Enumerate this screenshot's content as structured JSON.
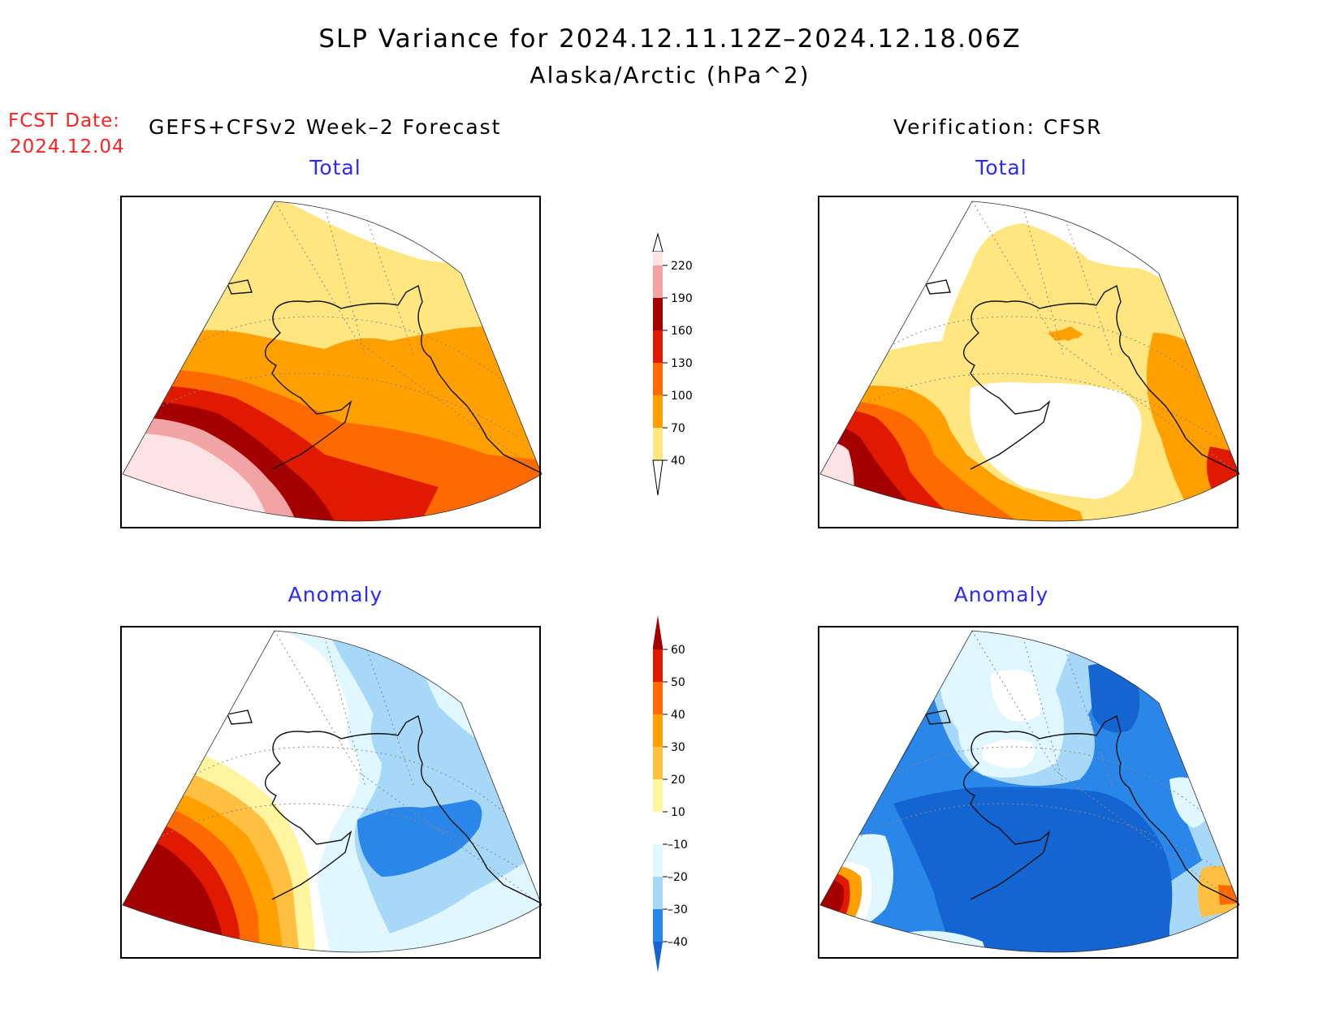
{
  "title": "SLP Variance for 2024.12.11.12Z–2024.12.18.06Z",
  "subtitle": "Alaska/Arctic (hPa^2)",
  "forecast_date": {
    "label": "FCST Date:",
    "value": "2024.12.04"
  },
  "left_header": "GEFS+CFSv2 Week–2 Forecast",
  "right_header": "Verification: CFSR",
  "panels": {
    "forecast_total_title": "Total",
    "verification_total_title": "Total",
    "forecast_anomaly_title": "Anomaly",
    "verification_anomaly_title": "Anomaly"
  },
  "colorbars": {
    "total": {
      "labels": [
        "220",
        "190",
        "160",
        "130",
        "100",
        "70",
        "40"
      ],
      "colors": {
        "c220": "#fde3e3",
        "c190": "#f2a4a4",
        "c160": "#a50000",
        "c130": "#e01a00",
        "c100": "#ff6a00",
        "c70": "#ffa000",
        "c40": "#ffe680",
        "below": "#ffffff"
      }
    },
    "anomaly": {
      "labels": [
        "60",
        "50",
        "40",
        "30",
        "20",
        "10",
        "–10",
        "–20",
        "–30",
        "–40"
      ],
      "colors": {
        "p60": "#a50000",
        "p50": "#e01a00",
        "p40": "#ff6a00",
        "p30": "#ffa000",
        "p20": "#ffbf40",
        "p10": "#fff5a0",
        "zero": "#ffffff",
        "m10": "#e0f7ff",
        "m20": "#a8d8f8",
        "m30": "#2a86e8",
        "m40": "#1464d2"
      }
    }
  }
}
